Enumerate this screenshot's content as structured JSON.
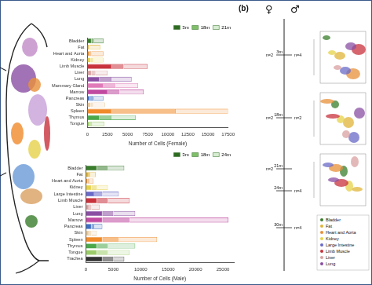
{
  "chart_data": [
    {
      "type": "bar",
      "orientation": "horizontal",
      "stacked": true,
      "grid": false,
      "legend": "upper right",
      "x_label": "Number of Cells (Female)",
      "categories": [
        "Bladder",
        "Fat",
        "Heart and Aorta",
        "Kidney",
        "Limb Muscle",
        "Liver",
        "Lung",
        "Mammary Gland",
        "Marrow",
        "Pancreas",
        "Skin",
        "Spleen",
        "Thymus",
        "Tongue"
      ],
      "colors": [
        "#3a7d2c",
        "#e0b43a",
        "#e8903a",
        "#e6d24a",
        "#c8323c",
        "#d9a0a0",
        "#8a4fa3",
        "#e07ab8",
        "#c04aa0",
        "#3f6fc4",
        "#e8c89a",
        "#f08a2a",
        "#4aa84a",
        "#9ccc6a"
      ],
      "series": [
        {
          "name": "3m",
          "color": "#2e6b22",
          "values": [
            500,
            200,
            300,
            400,
            3000,
            500,
            1500,
            2000,
            2500,
            300,
            400,
            3000,
            1500,
            300
          ]
        },
        {
          "name": "18m",
          "color": "#7fbf6a",
          "values": [
            300,
            100,
            200,
            300,
            1500,
            500,
            1500,
            1500,
            1500,
            500,
            300,
            8000,
            1500,
            300
          ]
        },
        {
          "name": "21m",
          "color": "#d6ecd0",
          "values": [
            1200,
            1300,
            1500,
            1300,
            3000,
            1500,
            2500,
            2800,
            3000,
            1200,
            1500,
            6500,
            3000,
            1500
          ]
        }
      ],
      "xlim": [
        0,
        17500
      ],
      "xticks": [
        0,
        2500,
        5000,
        7500,
        10000,
        12500,
        15000,
        17500
      ]
    },
    {
      "type": "bar",
      "orientation": "horizontal",
      "stacked": true,
      "grid": false,
      "legend": "upper right",
      "x_label": "Number of Cells (Male)",
      "categories": [
        "Bladder",
        "Fat",
        "Heart and Aorta",
        "Kidney",
        "Large Intestine",
        "Limb Muscle",
        "Liver",
        "Lung",
        "Marrow",
        "Pancreas",
        "Skin",
        "Spleen",
        "Thymus",
        "Tongue",
        "Trachea"
      ],
      "colors": [
        "#3a7d2c",
        "#e0b43a",
        "#e8903a",
        "#e6d24a",
        "#6a6ac8",
        "#c8323c",
        "#d9a0a0",
        "#8a4fa3",
        "#c04aa0",
        "#3f6fc4",
        "#e8c89a",
        "#f08a2a",
        "#4aa84a",
        "#9ccc6a",
        "#333333"
      ],
      "series": [
        {
          "name": "3m",
          "color": "#2e6b22",
          "values": [
            2000,
            500,
            300,
            1000,
            1500,
            2000,
            500,
            3000,
            3000,
            1000,
            500,
            3000,
            2000,
            2000,
            3000
          ]
        },
        {
          "name": "18m",
          "color": "#7fbf6a",
          "values": [
            2000,
            300,
            300,
            1000,
            1500,
            2000,
            500,
            2000,
            5000,
            500,
            500,
            3000,
            2000,
            2000,
            2000
          ]
        },
        {
          "name": "24m",
          "color": "#d6ecd0",
          "values": [
            3000,
            1000,
            800,
            2000,
            3000,
            4000,
            1500,
            4000,
            18000,
            1500,
            1000,
            7000,
            5000,
            4000,
            2000
          ]
        }
      ],
      "xlim": [
        0,
        27000
      ],
      "xticks": [
        0,
        5000,
        10000,
        15000,
        20000,
        25000
      ]
    }
  ],
  "panel_b": {
    "label": "(b)",
    "female": "♀",
    "male": "♂",
    "timepoints": [
      "3m",
      "18m",
      "21m",
      "24m",
      "30m"
    ],
    "female_n": [
      "n=2",
      "n=2",
      "n=2",
      null,
      null
    ],
    "male_n": [
      "n=4",
      "n=2",
      null,
      "n=4",
      "n=4"
    ],
    "tissue_legend": [
      {
        "name": "Bladder",
        "color": "#3a7d2c"
      },
      {
        "name": "Fat",
        "color": "#e0b43a"
      },
      {
        "name": "Heart and Aorta",
        "color": "#e8903a"
      },
      {
        "name": "Kidney",
        "color": "#e6d24a"
      },
      {
        "name": "Large Intestine",
        "color": "#6a6ac8"
      },
      {
        "name": "Limb Muscle",
        "color": "#c8323c"
      },
      {
        "name": "Liver",
        "color": "#d9a0a0"
      },
      {
        "name": "Lung",
        "color": "#8a4fa3"
      }
    ]
  }
}
